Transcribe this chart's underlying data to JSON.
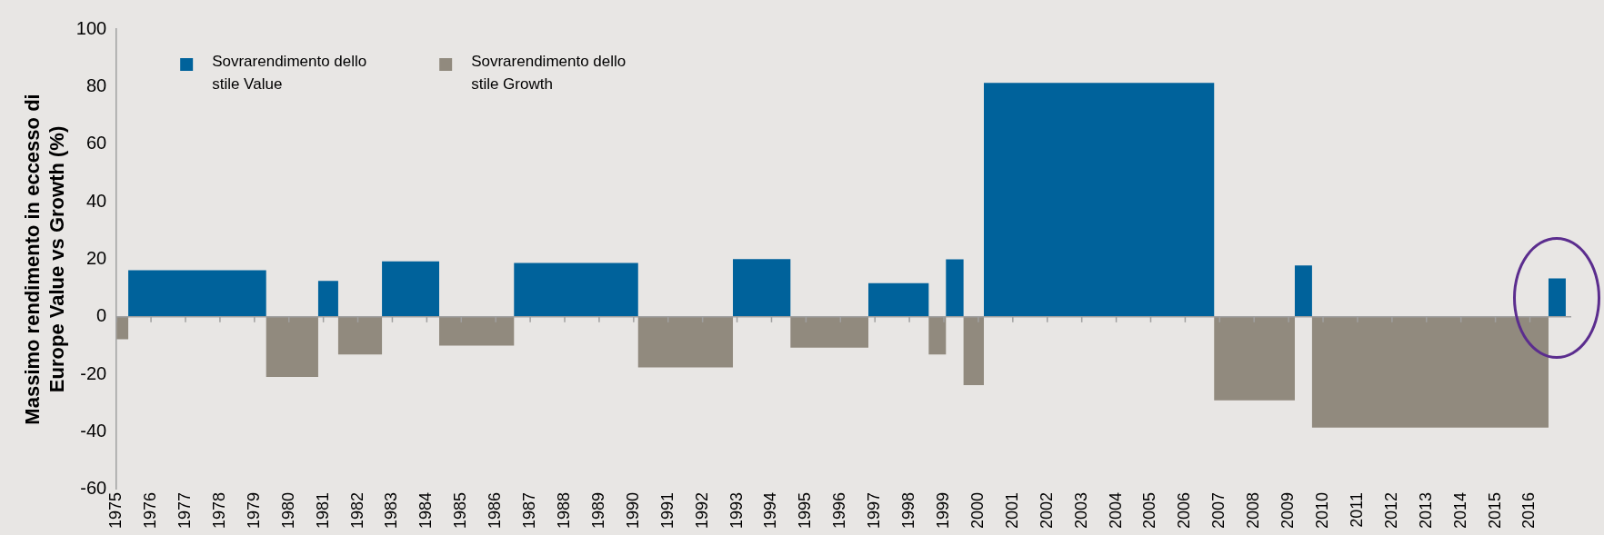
{
  "chart_data": {
    "type": "area",
    "ylabel": "Massimo rendimento in eccesso di Europe Value vs Growth (%)",
    "xlim": [
      1975,
      2017.2
    ],
    "xticks": [
      1975,
      1976,
      1977,
      1978,
      1979,
      1980,
      1981,
      1982,
      1983,
      1984,
      1985,
      1986,
      1987,
      1988,
      1989,
      1990,
      1991,
      1992,
      1993,
      1994,
      1995,
      1996,
      1997,
      1998,
      1999,
      2000,
      2001,
      2002,
      2003,
      2004,
      2005,
      2006,
      2007,
      2008,
      2009,
      2010,
      2011,
      2012,
      2013,
      2014,
      2015,
      2016
    ],
    "ylim": [
      -60,
      100
    ],
    "yticks": [
      -60,
      -40,
      -20,
      0,
      20,
      40,
      60,
      80,
      100
    ],
    "grid": false,
    "ref_lines": [
      {
        "axis": "y",
        "value": 0,
        "color": "#a0a0a0"
      }
    ],
    "legend": "top left",
    "series": [
      {
        "name": "Sovrarendimento dello stile Value",
        "color": "#00629b",
        "x": [
          1975.34,
          1975.34,
          1979.34,
          1979.34,
          1980.85,
          1980.85,
          1981.43,
          1981.43,
          1982.7,
          1982.7,
          1984.36,
          1984.36,
          1986.53,
          1986.53,
          1990.13,
          1990.13,
          1992.88,
          1992.88,
          1994.55,
          1994.55,
          1996.81,
          1996.81,
          1998.56,
          1998.56,
          1999.06,
          1999.06,
          1999.57,
          1999.57,
          2000.16,
          2000.16,
          2006.84,
          2006.84,
          2009.18,
          2009.18,
          2009.68,
          2009.68,
          2016.54,
          2016.54,
          2017.04,
          2017.04
        ],
        "values": [
          0,
          16.2,
          16.2,
          0,
          0,
          12.5,
          12.5,
          0,
          0,
          19.3,
          19.3,
          0,
          0,
          18.7,
          18.7,
          0,
          0,
          20.1,
          20.1,
          0,
          0,
          11.7,
          11.7,
          0,
          0,
          20.0,
          20.0,
          0,
          0,
          81.3,
          81.3,
          0,
          0,
          17.9,
          17.9,
          0,
          0,
          13.4,
          13.4,
          0
        ]
      },
      {
        "name": "Sovrarendimento dello stile Growth",
        "color": "#918a7e",
        "x": [
          1975,
          1975,
          1975.34,
          1975.34,
          1979.34,
          1979.34,
          1980.85,
          1980.85,
          1981.43,
          1981.43,
          1982.7,
          1982.7,
          1984.36,
          1984.36,
          1986.53,
          1986.53,
          1990.13,
          1990.13,
          1992.88,
          1992.88,
          1994.55,
          1994.55,
          1996.81,
          1996.81,
          1998.56,
          1998.56,
          1999.06,
          1999.06,
          1999.57,
          1999.57,
          2000.16,
          2000.16,
          2006.84,
          2006.84,
          2009.18,
          2009.18,
          2009.68,
          2009.68,
          2016.54,
          2016.54
        ],
        "values": [
          0,
          -7.8,
          -7.8,
          0,
          0,
          -20.9,
          -20.9,
          0,
          0,
          -13.1,
          -13.1,
          0,
          0,
          -10.0,
          -10.0,
          0,
          0,
          -17.6,
          -17.6,
          0,
          0,
          -10.7,
          -10.7,
          0,
          0,
          -13.1,
          -13.1,
          0,
          0,
          -23.7,
          -23.7,
          0,
          0,
          -29.0,
          -29.0,
          0,
          0,
          -38.5,
          -38.5,
          0
        ]
      }
    ]
  }
}
